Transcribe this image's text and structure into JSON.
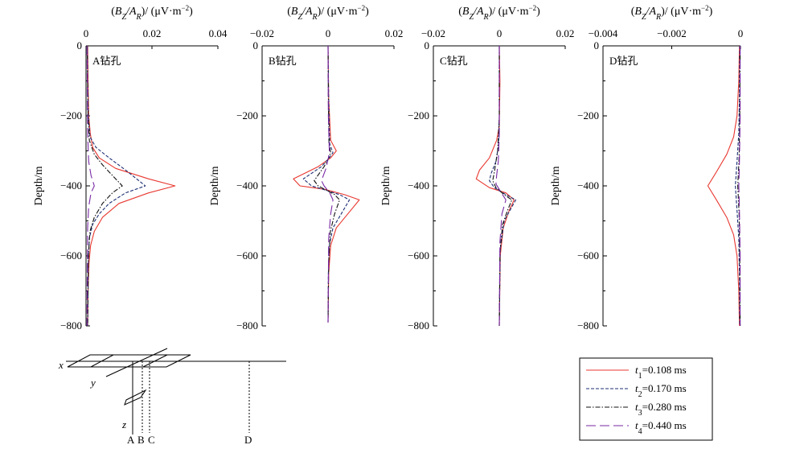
{
  "figure": {
    "depth_label": "Depth/m",
    "borehole_letters": [
      "A",
      "B",
      "C",
      "D"
    ],
    "axis_x": "x",
    "axis_y": "y",
    "axis_z": "z"
  },
  "colors": {
    "t1": "#e8372f",
    "t2": "#1c2f73",
    "t3": "#111111",
    "t4": "#7a2aa6"
  },
  "chart_data": [
    {
      "type": "line",
      "title": "(B_Z/A_R)/ (μV·m⁻²)",
      "panel_label": "A钻孔",
      "xlim": [
        0,
        0.04
      ],
      "xticks": [
        "0",
        "0.02",
        "0.04"
      ],
      "ylim": [
        0,
        -800
      ],
      "yticks": [
        "0",
        "−200",
        "−400",
        "−600",
        "−800"
      ],
      "ylabel": "Depth/m",
      "series": [
        {
          "name": "t1=0.108 ms",
          "x": [
            0.0005,
            0.0006,
            0.0008,
            0.0013,
            0.002,
            0.004,
            0.009,
            0.019,
            0.027,
            0.019,
            0.01,
            0.005,
            0.0025,
            0.0014,
            0.0009,
            0.0006,
            0.0005
          ],
          "y": [
            0,
            -100,
            -200,
            -250,
            -290,
            -320,
            -350,
            -380,
            -400,
            -420,
            -450,
            -490,
            -530,
            -570,
            -620,
            -700,
            -800
          ]
        },
        {
          "name": "t2=0.170 ms",
          "x": [
            0.0004,
            0.0005,
            0.0007,
            0.0012,
            0.003,
            0.007,
            0.012,
            0.018,
            0.012,
            0.007,
            0.004,
            0.002,
            0.001,
            0.0007,
            0.0005
          ],
          "y": [
            0,
            -100,
            -200,
            -260,
            -290,
            -320,
            -355,
            -400,
            -420,
            -450,
            -480,
            -510,
            -550,
            -620,
            -800
          ]
        },
        {
          "name": "t3=0.280 ms",
          "x": [
            0.0004,
            0.0005,
            0.0006,
            0.001,
            0.0025,
            0.005,
            0.008,
            0.011,
            0.008,
            0.005,
            0.0025,
            0.0012,
            0.0007,
            0.0005
          ],
          "y": [
            0,
            -100,
            -200,
            -270,
            -310,
            -340,
            -370,
            -400,
            -420,
            -450,
            -490,
            -530,
            -600,
            -800
          ]
        },
        {
          "name": "t4=0.440 ms",
          "x": [
            0.0003,
            0.0004,
            0.0005,
            0.0008,
            0.0015,
            0.0025,
            0.0015,
            0.0008,
            0.0005,
            0.0004,
            0.0003
          ],
          "y": [
            0,
            -100,
            -250,
            -330,
            -370,
            -400,
            -420,
            -460,
            -520,
            -650,
            -800
          ]
        }
      ]
    },
    {
      "type": "line",
      "title": "(B_Z/A_R)/ (μV·m⁻²)",
      "panel_label": "B钻孔",
      "xlim": [
        -0.02,
        0.02
      ],
      "xticks": [
        "−0.02",
        "0",
        "0.02"
      ],
      "ylim": [
        0,
        -800
      ],
      "yticks": [
        "0",
        "−200",
        "−400",
        "−600",
        "−800"
      ],
      "ylabel": "Depth/m",
      "series": [
        {
          "name": "t1=0.108 ms",
          "x": [
            0,
            0.0002,
            0.0008,
            0.0025,
            0.0008,
            -0.003,
            -0.0105,
            -0.0085,
            -0.001,
            0.005,
            0.0095,
            0.006,
            0.0025,
            0.0008,
            0.0002,
            0
          ],
          "y": [
            0,
            -150,
            -270,
            -300,
            -320,
            -345,
            -380,
            -400,
            -410,
            -425,
            -440,
            -480,
            -520,
            -570,
            -650,
            -790
          ]
        },
        {
          "name": "t2=0.170 ms",
          "x": [
            0,
            0.0002,
            0.0005,
            0.0015,
            0.0004,
            -0.002,
            -0.0075,
            -0.005,
            -0.0008,
            0.0035,
            0.0065,
            0.004,
            0.0015,
            0.0004,
            0.0001,
            0
          ],
          "y": [
            0,
            -150,
            -280,
            -305,
            -320,
            -345,
            -380,
            -400,
            -412,
            -425,
            -440,
            -480,
            -520,
            -570,
            -650,
            -790
          ]
        },
        {
          "name": "t3=0.280 ms",
          "x": [
            0,
            0.0001,
            0.0003,
            0.0008,
            0.0002,
            -0.0012,
            -0.0042,
            -0.003,
            -0.0005,
            0.002,
            0.0035,
            0.002,
            0.0007,
            0.0002,
            0
          ],
          "y": [
            0,
            -150,
            -280,
            -305,
            -320,
            -345,
            -385,
            -400,
            -412,
            -425,
            -440,
            -480,
            -530,
            -620,
            -790
          ]
        },
        {
          "name": "t4=0.440 ms",
          "x": [
            0,
            0.0001,
            0.0004,
            0.0001,
            -0.0006,
            -0.002,
            -0.0012,
            0.0005,
            0.0015,
            0.0008,
            0.0002,
            0
          ],
          "y": [
            0,
            -200,
            -300,
            -320,
            -350,
            -385,
            -400,
            -420,
            -440,
            -480,
            -550,
            -790
          ]
        }
      ]
    },
    {
      "type": "line",
      "title": "(B_Z/A_R)/ (μV·m⁻²)",
      "panel_label": "C钻孔",
      "xlim": [
        -0.02,
        0.02
      ],
      "xticks": [
        "−0.02",
        "0",
        "0.02"
      ],
      "ylim": [
        0,
        -800
      ],
      "yticks": [
        "0",
        "−200",
        "−400",
        "−600",
        "−800"
      ],
      "ylabel": "Depth/m",
      "series": [
        {
          "name": "t1=0.108 ms",
          "x": [
            0,
            0.0002,
            0,
            -0.0008,
            -0.003,
            -0.006,
            -0.007,
            -0.003,
            0.002,
            0.0045,
            0.003,
            0.0012,
            0.0003,
            0
          ],
          "y": [
            0,
            -100,
            -230,
            -270,
            -320,
            -355,
            -380,
            -405,
            -420,
            -440,
            -470,
            -520,
            -600,
            -800
          ]
        },
        {
          "name": "t2=0.170 ms",
          "x": [
            0,
            0,
            -0.0002,
            -0.001,
            -0.0025,
            -0.003,
            -0.0015,
            0.002,
            0.005,
            0.0035,
            0.0015,
            0.0003,
            0
          ],
          "y": [
            0,
            -200,
            -280,
            -330,
            -365,
            -385,
            -405,
            -425,
            -440,
            -465,
            -500,
            -580,
            -800
          ]
        },
        {
          "name": "t3=0.280 ms",
          "x": [
            0,
            0,
            -0.0005,
            -0.0015,
            -0.002,
            -0.001,
            0.0015,
            0.0038,
            0.0025,
            0.001,
            0.0002,
            0
          ],
          "y": [
            0,
            -200,
            -300,
            -360,
            -385,
            -405,
            -425,
            -440,
            -470,
            -510,
            -590,
            -800
          ]
        },
        {
          "name": "t4=0.440 ms",
          "x": [
            0,
            0,
            -0.0003,
            -0.0008,
            -0.001,
            0.001,
            0.002,
            0.0008,
            0.0002,
            0
          ],
          "y": [
            0,
            -250,
            -330,
            -370,
            -395,
            -425,
            -440,
            -480,
            -560,
            -800
          ]
        }
      ]
    },
    {
      "type": "line",
      "title": "(B_Z/A_R)/ (μV·m⁻²)",
      "panel_label": "D钻孔",
      "xlim": [
        -0.004,
        0
      ],
      "xticks": [
        "−0.004",
        "−0.002",
        "0"
      ],
      "ylim": [
        0,
        -800
      ],
      "yticks": [
        "0",
        "−200",
        "−400",
        "−600",
        "−800"
      ],
      "ylabel": "Depth/m",
      "series": [
        {
          "name": "t1=0.108 ms",
          "x": [
            -3e-05,
            -5e-05,
            -0.0001,
            -0.0002,
            -0.0004,
            -0.0007,
            -0.00095,
            -0.0007,
            -0.0004,
            -0.0002,
            -0.0001,
            -5e-05,
            -3e-05
          ],
          "y": [
            0,
            -100,
            -200,
            -260,
            -310,
            -360,
            -400,
            -440,
            -490,
            -540,
            -600,
            -700,
            -800
          ]
        },
        {
          "name": "t2=0.170 ms",
          "x": [
            -2e-05,
            -3e-05,
            -5e-05,
            -0.0001,
            -0.00015,
            -0.0001,
            -5e-05,
            -3e-05,
            -2e-05
          ],
          "y": [
            0,
            -150,
            -250,
            -330,
            -400,
            -470,
            -550,
            -650,
            -800
          ]
        },
        {
          "name": "t3=0.280 ms",
          "x": [
            -1e-05,
            -2e-05,
            -4e-05,
            -8e-05,
            -4e-05,
            -2e-05,
            -1e-05
          ],
          "y": [
            0,
            -200,
            -320,
            -400,
            -480,
            -600,
            -800
          ]
        },
        {
          "name": "t4=0.440 ms",
          "x": [
            -1e-05,
            -1e-05,
            -3e-05,
            -5e-05,
            -3e-05,
            -1e-05,
            -1e-05
          ],
          "y": [
            0,
            -200,
            -330,
            -400,
            -470,
            -600,
            -800
          ]
        }
      ]
    }
  ],
  "legend": {
    "entries": [
      {
        "sym": "t",
        "sub": "1",
        "value": "=0.108 ms"
      },
      {
        "sym": "t",
        "sub": "2",
        "value": "=0.170 ms"
      },
      {
        "sym": "t",
        "sub": "3",
        "value": "=0.280 ms"
      },
      {
        "sym": "t",
        "sub": "4",
        "value": "=0.440 ms"
      }
    ]
  }
}
